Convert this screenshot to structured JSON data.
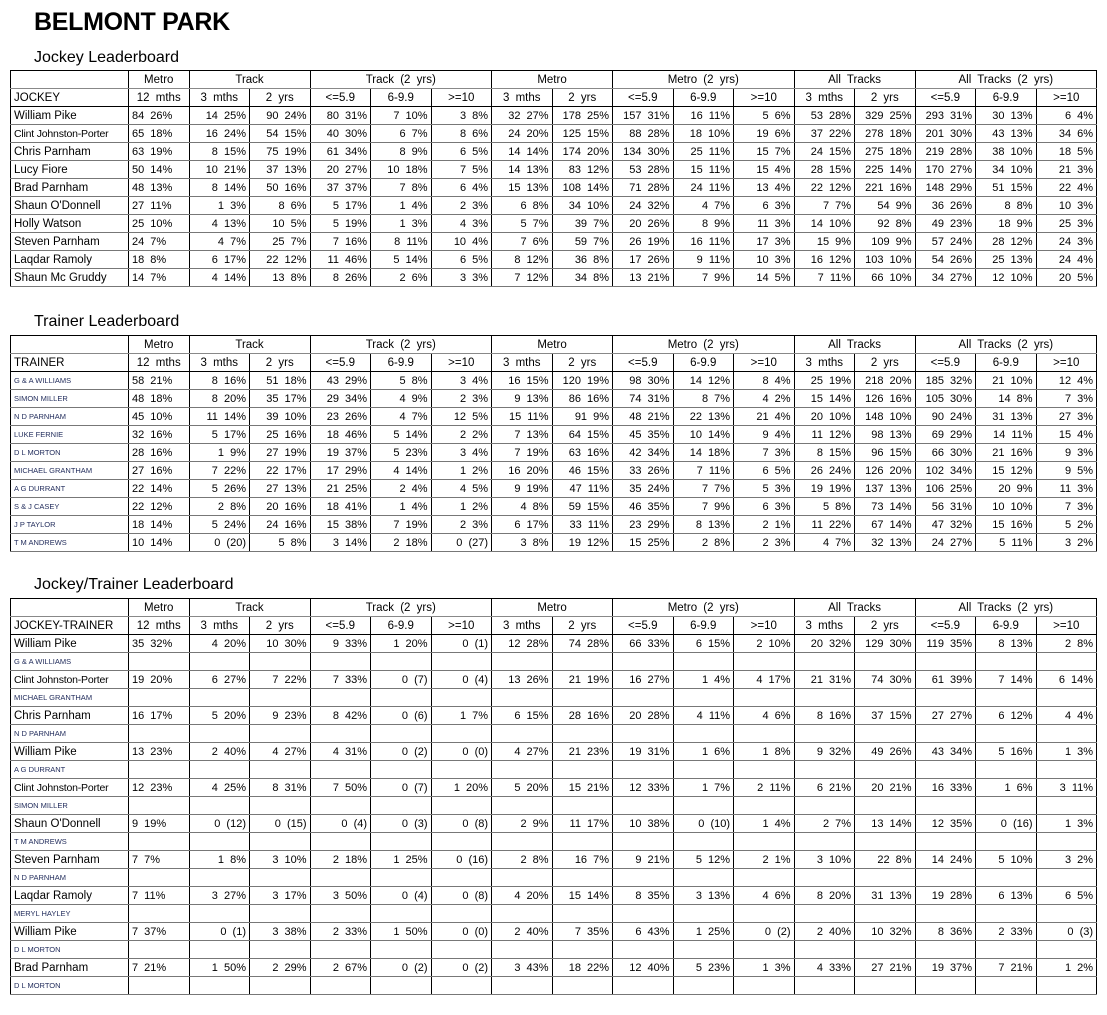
{
  "title": "BELMONT PARK",
  "group_headers": [
    {
      "label": "",
      "span": 1
    },
    {
      "label": "Metro",
      "span": 1
    },
    {
      "label": "Track",
      "span": 2
    },
    {
      "label": "Track (2 yrs)",
      "span": 3
    },
    {
      "label": "Metro",
      "span": 2
    },
    {
      "label": "Metro (2 yrs)",
      "span": 3
    },
    {
      "label": "All Tracks",
      "span": 2
    },
    {
      "label": "All Tracks (2 yrs)",
      "span": 3
    }
  ],
  "sub_headers": [
    "12 mths",
    "3 mths",
    "2 yrs",
    "<=5.9",
    "6-9.9",
    ">=10",
    "3 mths",
    "2 yrs",
    "<=5.9",
    "6-9.9",
    ">=10",
    "3 mths",
    "2 yrs",
    "<=5.9",
    "6-9.9",
    ">=10"
  ],
  "jockey": {
    "heading": "Jockey Leaderboard",
    "name_header": "JOCKEY",
    "rows": [
      {
        "name": "William Pike",
        "cells": [
          "84 26%",
          "14 25%",
          "90 24%",
          "80 31%",
          "7 10%",
          "3 8%",
          "32 27%",
          "178 25%",
          "157 31%",
          "16 11%",
          "5 6%",
          "53 28%",
          "329 25%",
          "293 31%",
          "30 13%",
          "6 4%"
        ]
      },
      {
        "name": "Clint Johnston-Porter",
        "cells": [
          "65 18%",
          "16 24%",
          "54 15%",
          "40 30%",
          "6 7%",
          "8 6%",
          "24 20%",
          "125 15%",
          "88 28%",
          "18 10%",
          "19 6%",
          "37 22%",
          "278 18%",
          "201 30%",
          "43 13%",
          "34 6%"
        ]
      },
      {
        "name": "Chris Parnham",
        "cells": [
          "63 19%",
          "8 15%",
          "75 19%",
          "61 34%",
          "8 9%",
          "6 5%",
          "14 14%",
          "174 20%",
          "134 30%",
          "25 11%",
          "15 7%",
          "24 15%",
          "275 18%",
          "219 28%",
          "38 10%",
          "18 5%"
        ]
      },
      {
        "name": "Lucy Fiore",
        "cells": [
          "50 14%",
          "10 21%",
          "37 13%",
          "20 27%",
          "10 18%",
          "7 5%",
          "14 13%",
          "83 12%",
          "53 28%",
          "15 11%",
          "15 4%",
          "28 15%",
          "225 14%",
          "170 27%",
          "34 10%",
          "21 3%"
        ]
      },
      {
        "name": "Brad Parnham",
        "cells": [
          "48 13%",
          "8 14%",
          "50 16%",
          "37 37%",
          "7 8%",
          "6 4%",
          "15 13%",
          "108 14%",
          "71 28%",
          "24 11%",
          "13 4%",
          "22 12%",
          "221 16%",
          "148 29%",
          "51 15%",
          "22 4%"
        ]
      },
      {
        "name": "Shaun O'Donnell",
        "cells": [
          "27 11%",
          "1 3%",
          "8 6%",
          "5 17%",
          "1 4%",
          "2 3%",
          "6 8%",
          "34 10%",
          "24 32%",
          "4 7%",
          "6 3%",
          "7 7%",
          "54 9%",
          "36 26%",
          "8 8%",
          "10 3%"
        ]
      },
      {
        "name": "Holly Watson",
        "cells": [
          "25 10%",
          "4 13%",
          "10 5%",
          "5 19%",
          "1 3%",
          "4 3%",
          "5 7%",
          "39 7%",
          "20 26%",
          "8 9%",
          "11 3%",
          "14 10%",
          "92 8%",
          "49 23%",
          "18 9%",
          "25 3%"
        ]
      },
      {
        "name": "Steven Parnham",
        "cells": [
          "24 7%",
          "4 7%",
          "25 7%",
          "7 16%",
          "8 11%",
          "10 4%",
          "7 6%",
          "59 7%",
          "26 19%",
          "16 11%",
          "17 3%",
          "15 9%",
          "109 9%",
          "57 24%",
          "28 12%",
          "24 3%"
        ]
      },
      {
        "name": "Laqdar Ramoly",
        "cells": [
          "18 8%",
          "6 17%",
          "22 12%",
          "11 46%",
          "5 14%",
          "6 5%",
          "8 12%",
          "36 8%",
          "17 26%",
          "9 11%",
          "10 3%",
          "16 12%",
          "103 10%",
          "54 26%",
          "25 13%",
          "24 4%"
        ]
      },
      {
        "name": "Shaun Mc Gruddy",
        "cells": [
          "14 7%",
          "4 14%",
          "13 8%",
          "8 26%",
          "2 6%",
          "3 3%",
          "7 12%",
          "34 8%",
          "13 21%",
          "7 9%",
          "14 5%",
          "7 11%",
          "66 10%",
          "34 27%",
          "12 10%",
          "20 5%"
        ]
      }
    ]
  },
  "trainer": {
    "heading": "Trainer Leaderboard",
    "name_header": "TRAINER",
    "rows": [
      {
        "name": "G & A WILLIAMS",
        "cells": [
          "58 21%",
          "8 16%",
          "51 18%",
          "43 29%",
          "5 8%",
          "3 4%",
          "16 15%",
          "120 19%",
          "98 30%",
          "14 12%",
          "8 4%",
          "25 19%",
          "218 20%",
          "185 32%",
          "21 10%",
          "12 4%"
        ]
      },
      {
        "name": "SIMON MILLER",
        "cells": [
          "48 18%",
          "8 20%",
          "35 17%",
          "29 34%",
          "4 9%",
          "2 3%",
          "9 13%",
          "86 16%",
          "74 31%",
          "8 7%",
          "4 2%",
          "15 14%",
          "126 16%",
          "105 30%",
          "14 8%",
          "7 3%"
        ]
      },
      {
        "name": "N D PARNHAM",
        "cells": [
          "45 10%",
          "11 14%",
          "39 10%",
          "23 26%",
          "4 7%",
          "12 5%",
          "15 11%",
          "91 9%",
          "48 21%",
          "22 13%",
          "21 4%",
          "20 10%",
          "148 10%",
          "90 24%",
          "31 13%",
          "27 3%"
        ]
      },
      {
        "name": "LUKE FERNIE",
        "cells": [
          "32 16%",
          "5 17%",
          "25 16%",
          "18 46%",
          "5 14%",
          "2 2%",
          "7 13%",
          "64 15%",
          "45 35%",
          "10 14%",
          "9 4%",
          "11 12%",
          "98 13%",
          "69 29%",
          "14 11%",
          "15 4%"
        ]
      },
      {
        "name": "D L MORTON",
        "cells": [
          "28 16%",
          "1 9%",
          "27 19%",
          "19 37%",
          "5 23%",
          "3 4%",
          "7 19%",
          "63 16%",
          "42 34%",
          "14 18%",
          "7 3%",
          "8 15%",
          "96 15%",
          "66 30%",
          "21 16%",
          "9 3%"
        ]
      },
      {
        "name": "MICHAEL GRANTHAM",
        "cells": [
          "27 16%",
          "7 22%",
          "22 17%",
          "17 29%",
          "4 14%",
          "1 2%",
          "16 20%",
          "46 15%",
          "33 26%",
          "7 11%",
          "6 5%",
          "26 24%",
          "126 20%",
          "102 34%",
          "15 12%",
          "9 5%"
        ]
      },
      {
        "name": "A G DURRANT",
        "cells": [
          "22 14%",
          "5 26%",
          "27 13%",
          "21 25%",
          "2 4%",
          "4 5%",
          "9 19%",
          "47 11%",
          "35 24%",
          "7 7%",
          "5 3%",
          "19 19%",
          "137 13%",
          "106 25%",
          "20 9%",
          "11 3%"
        ]
      },
      {
        "name": "S & J CASEY",
        "cells": [
          "22 12%",
          "2 8%",
          "20 16%",
          "18 41%",
          "1 4%",
          "1 2%",
          "4 8%",
          "59 15%",
          "46 35%",
          "7 9%",
          "6 3%",
          "5 8%",
          "73 14%",
          "56 31%",
          "10 10%",
          "7 3%"
        ]
      },
      {
        "name": "J P TAYLOR",
        "cells": [
          "18 14%",
          "5 24%",
          "24 16%",
          "15 38%",
          "7 19%",
          "2 3%",
          "6 17%",
          "33 11%",
          "23 29%",
          "8 13%",
          "2 1%",
          "11 22%",
          "67 14%",
          "47 32%",
          "15 16%",
          "5 2%"
        ]
      },
      {
        "name": "T M ANDREWS",
        "cells": [
          "10 14%",
          "0 (20)",
          "5 8%",
          "3 14%",
          "2 18%",
          "0 (27)",
          "3 8%",
          "19 12%",
          "15 25%",
          "2 8%",
          "2 3%",
          "4 7%",
          "32 13%",
          "24 27%",
          "5 11%",
          "3 2%"
        ]
      }
    ]
  },
  "jockey_trainer": {
    "heading": "Jockey/Trainer Leaderboard",
    "name_header": "JOCKEY-TRAINER",
    "rows": [
      {
        "name": "William Pike",
        "trainer": "G & A WILLIAMS",
        "cells": [
          "35 32%",
          "4 20%",
          "10 30%",
          "9 33%",
          "1 20%",
          "0 (1)",
          "12 28%",
          "74 28%",
          "66 33%",
          "6 15%",
          "2 10%",
          "20 32%",
          "129 30%",
          "119 35%",
          "8 13%",
          "2 8%"
        ]
      },
      {
        "name": "Clint Johnston-Porter",
        "trainer": "MICHAEL GRANTHAM",
        "cells": [
          "19 20%",
          "6 27%",
          "7 22%",
          "7 33%",
          "0 (7)",
          "0 (4)",
          "13 26%",
          "21 19%",
          "16 27%",
          "1 4%",
          "4 17%",
          "21 31%",
          "74 30%",
          "61 39%",
          "7 14%",
          "6 14%"
        ]
      },
      {
        "name": "Chris Parnham",
        "trainer": "N D PARNHAM",
        "cells": [
          "16 17%",
          "5 20%",
          "9 23%",
          "8 42%",
          "0 (6)",
          "1 7%",
          "6 15%",
          "28 16%",
          "20 28%",
          "4 11%",
          "4 6%",
          "8 16%",
          "37 15%",
          "27 27%",
          "6 12%",
          "4 4%"
        ]
      },
      {
        "name": "William Pike",
        "trainer": "A G DURRANT",
        "cells": [
          "13 23%",
          "2 40%",
          "4 27%",
          "4 31%",
          "0 (2)",
          "0 (0)",
          "4 27%",
          "21 23%",
          "19 31%",
          "1 6%",
          "1 8%",
          "9 32%",
          "49 26%",
          "43 34%",
          "5 16%",
          "1 3%"
        ]
      },
      {
        "name": "Clint Johnston-Porter",
        "trainer": "SIMON MILLER",
        "cells": [
          "12 23%",
          "4 25%",
          "8 31%",
          "7 50%",
          "0 (7)",
          "1 20%",
          "5 20%",
          "15 21%",
          "12 33%",
          "1 7%",
          "2 11%",
          "6 21%",
          "20 21%",
          "16 33%",
          "1 6%",
          "3 11%"
        ]
      },
      {
        "name": "Shaun O'Donnell",
        "trainer": "T M ANDREWS",
        "cells": [
          "9 19%",
          "0 (12)",
          "0 (15)",
          "0 (4)",
          "0 (3)",
          "0 (8)",
          "2 9%",
          "11 17%",
          "10 38%",
          "0 (10)",
          "1 4%",
          "2 7%",
          "13 14%",
          "12 35%",
          "0 (16)",
          "1 3%"
        ]
      },
      {
        "name": "Steven Parnham",
        "trainer": "N D PARNHAM",
        "cells": [
          "7 7%",
          "1 8%",
          "3 10%",
          "2 18%",
          "1 25%",
          "0 (16)",
          "2 8%",
          "16 7%",
          "9 21%",
          "5 12%",
          "2 1%",
          "3 10%",
          "22 8%",
          "14 24%",
          "5 10%",
          "3 2%"
        ]
      },
      {
        "name": "Laqdar Ramoly",
        "trainer": "MERYL HAYLEY",
        "cells": [
          "7 11%",
          "3 27%",
          "3 17%",
          "3 50%",
          "0 (4)",
          "0 (8)",
          "4 20%",
          "15 14%",
          "8 35%",
          "3 13%",
          "4 6%",
          "8 20%",
          "31 13%",
          "19 28%",
          "6 13%",
          "6 5%"
        ]
      },
      {
        "name": "William Pike",
        "trainer": "D L MORTON",
        "cells": [
          "7 37%",
          "0 (1)",
          "3 38%",
          "2 33%",
          "1 50%",
          "0 (0)",
          "2 40%",
          "7 35%",
          "6 43%",
          "1 25%",
          "0 (2)",
          "2 40%",
          "10 32%",
          "8 36%",
          "2 33%",
          "0 (3)"
        ]
      },
      {
        "name": "Brad Parnham",
        "trainer": "D L MORTON",
        "cells": [
          "7 21%",
          "1 50%",
          "2 29%",
          "2 67%",
          "0 (2)",
          "0 (2)",
          "3 43%",
          "18 22%",
          "12 40%",
          "5 23%",
          "1 3%",
          "4 33%",
          "27 21%",
          "19 37%",
          "7 21%",
          "1 2%"
        ]
      }
    ]
  }
}
